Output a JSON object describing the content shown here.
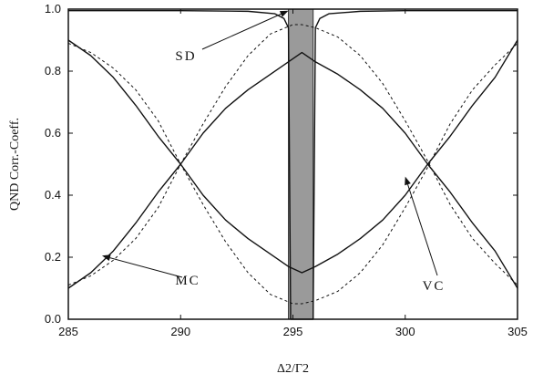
{
  "chart_data": {
    "type": "line",
    "title": "",
    "xlabel": "Δ2/Γ2",
    "ylabel": "QND Corr.-Coeff.",
    "xlim": [
      285,
      305
    ],
    "ylim": [
      0.0,
      1.0
    ],
    "xticks": [
      285,
      290,
      295,
      300,
      305
    ],
    "xtick_labels": [
      "285",
      "290",
      "295",
      "300",
      "305"
    ],
    "yticks": [
      0.0,
      0.2,
      0.4,
      0.6,
      0.8,
      1.0
    ],
    "ytick_labels": [
      "0.0",
      "0.2",
      "0.4",
      "0.6",
      "0.8",
      "1.0"
    ],
    "grid": false,
    "shaded_region": {
      "x": [
        294.8,
        295.9
      ],
      "color": "#9a9a9a"
    },
    "series": [
      {
        "name": "SD",
        "style": "solid",
        "x": [
          285,
          290,
          293,
          294.2,
          294.6,
          294.8,
          294.9,
          295.9,
          296.0,
          296.2,
          296.6,
          298,
          300,
          305
        ],
        "y": [
          0.995,
          0.995,
          0.993,
          0.985,
          0.97,
          0.94,
          0.0,
          0.0,
          0.94,
          0.97,
          0.985,
          0.993,
          0.995,
          0.995
        ]
      },
      {
        "name": "MC",
        "style": "solid",
        "x": [
          285,
          286,
          287,
          288,
          289,
          290,
          291,
          292,
          293,
          294,
          294.8,
          295.4,
          296,
          297,
          298,
          299,
          300,
          301,
          302,
          303,
          304,
          305
        ],
        "y": [
          0.1,
          0.15,
          0.22,
          0.31,
          0.41,
          0.5,
          0.6,
          0.68,
          0.74,
          0.79,
          0.83,
          0.86,
          0.83,
          0.79,
          0.74,
          0.68,
          0.6,
          0.5,
          0.41,
          0.31,
          0.22,
          0.1
        ]
      },
      {
        "name": "VC",
        "style": "solid",
        "x": [
          285,
          286,
          287,
          288,
          289,
          290,
          291,
          292,
          293,
          294,
          294.8,
          295.4,
          296,
          297,
          298,
          299,
          300,
          301,
          302,
          303,
          304,
          305
        ],
        "y": [
          0.9,
          0.85,
          0.78,
          0.69,
          0.59,
          0.5,
          0.4,
          0.32,
          0.26,
          0.21,
          0.17,
          0.15,
          0.17,
          0.21,
          0.26,
          0.32,
          0.4,
          0.5,
          0.59,
          0.69,
          0.78,
          0.9
        ]
      },
      {
        "name": "",
        "style": "dashed",
        "x": [
          285,
          286,
          287,
          288,
          289,
          290,
          291,
          292,
          293,
          294,
          295,
          295.4,
          296,
          297,
          298,
          299,
          300,
          301,
          302,
          303,
          304,
          305
        ],
        "y": [
          0.11,
          0.14,
          0.19,
          0.26,
          0.36,
          0.5,
          0.63,
          0.75,
          0.85,
          0.92,
          0.95,
          0.95,
          0.94,
          0.91,
          0.85,
          0.76,
          0.64,
          0.51,
          0.37,
          0.26,
          0.18,
          0.11
        ]
      },
      {
        "name": "",
        "style": "dashed",
        "x": [
          285,
          286,
          287,
          288,
          289,
          290,
          291,
          292,
          293,
          294,
          295,
          295.4,
          296,
          297,
          298,
          299,
          300,
          301,
          302,
          303,
          304,
          305
        ],
        "y": [
          0.89,
          0.86,
          0.81,
          0.74,
          0.64,
          0.5,
          0.37,
          0.25,
          0.15,
          0.08,
          0.05,
          0.05,
          0.06,
          0.09,
          0.15,
          0.24,
          0.36,
          0.49,
          0.63,
          0.74,
          0.82,
          0.89
        ]
      }
    ],
    "annotations": [
      {
        "text": "SD",
        "arrow_to": [
          294.8,
          0.995
        ]
      },
      {
        "text": "MC",
        "arrow_to": [
          286.5,
          0.205
        ]
      },
      {
        "text": "VC",
        "arrow_to": [
          300,
          0.46
        ]
      }
    ]
  }
}
